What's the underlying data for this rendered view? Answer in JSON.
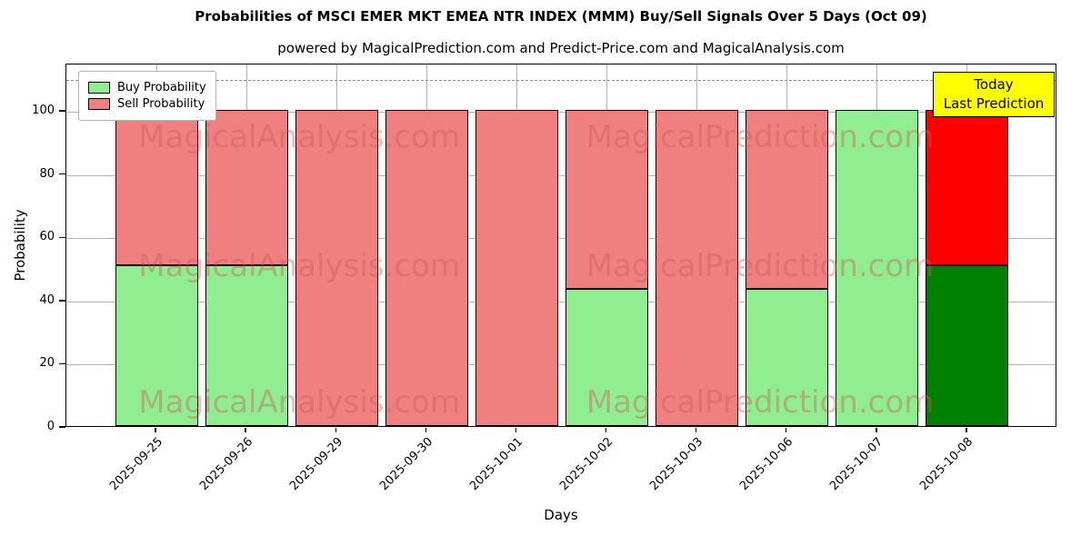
{
  "title": "Probabilities of MSCI EMER MKT EMEA NTR INDEX (MMM) Buy/Sell Signals Over 5 Days (Oct 09)",
  "subtitle": "powered by MagicalPrediction.com and Predict-Price.com and MagicalAnalysis.com",
  "watermarks": [
    "MagicalAnalysis.com",
    "MagicalPrediction.com"
  ],
  "annotation": {
    "line1": "Today",
    "line2": "Last Prediction",
    "bg_color": "#ffff00",
    "border_color": "#000000"
  },
  "chart_data": {
    "type": "bar",
    "stacked": true,
    "xlabel": "Days",
    "ylabel": "Probability",
    "categories": [
      "2025-09-25",
      "2025-09-26",
      "2025-09-29",
      "2025-09-30",
      "2025-10-01",
      "2025-10-02",
      "2025-10-03",
      "2025-10-06",
      "2025-10-07",
      "2025-10-08"
    ],
    "series": [
      {
        "name": "Buy Probability",
        "color": "#90ee90",
        "values": [
          51,
          51,
          0,
          0,
          0,
          43.5,
          0,
          43.5,
          100,
          51
        ]
      },
      {
        "name": "Sell Probability",
        "color": "#f08080",
        "values": [
          49,
          49,
          100,
          100,
          100,
          56.5,
          100,
          56.5,
          0,
          49
        ]
      }
    ],
    "highlight_last_bar": {
      "buy_color": "#008000",
      "sell_color": "#ff0000"
    },
    "bar_edge_color": "#000000",
    "ylim": [
      0,
      115
    ],
    "yticks": [
      0,
      20,
      40,
      60,
      80,
      100
    ],
    "dashed_line_y": 110,
    "grid": true,
    "legend_position": "upper left"
  }
}
